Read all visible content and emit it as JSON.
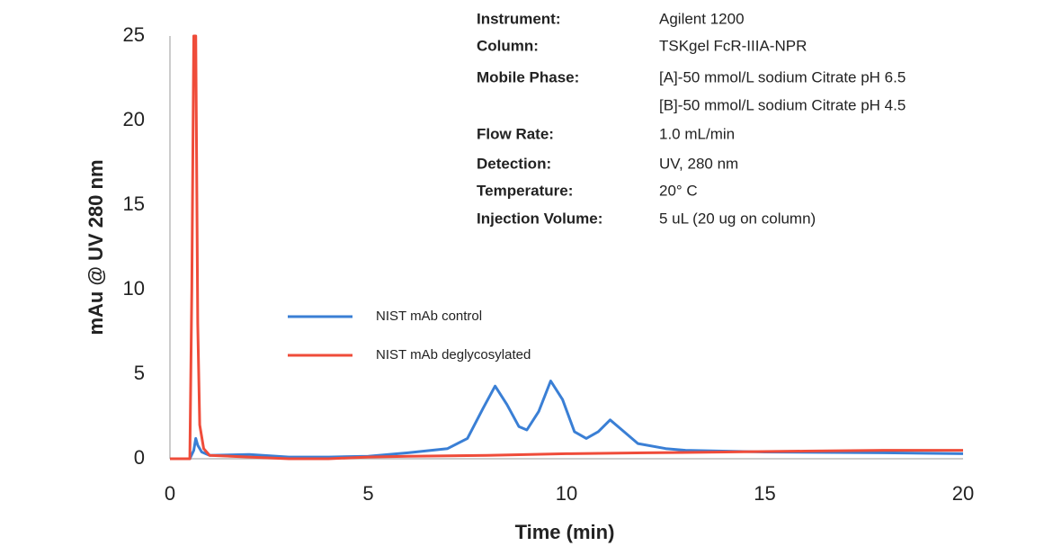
{
  "chart_data": {
    "type": "line",
    "x_label": "Time (min)",
    "y_label": "mAu @ UV 280 nm",
    "xlim": [
      0,
      20
    ],
    "xticks": [
      0,
      5,
      10,
      15,
      20
    ],
    "ylim": [
      0,
      25
    ],
    "yticks": [
      0,
      5,
      10,
      15,
      20,
      25
    ],
    "grid": false,
    "legend": "center-left",
    "series": [
      {
        "name": "NIST mAb  control",
        "color": "#3a7fd5",
        "x": [
          0,
          0.5,
          0.6,
          0.65,
          0.7,
          0.8,
          1,
          2,
          3,
          4,
          5,
          6,
          7,
          7.5,
          7.9,
          8.2,
          8.5,
          8.8,
          9.0,
          9.3,
          9.6,
          9.9,
          10.2,
          10.5,
          10.8,
          11.1,
          11.4,
          11.8,
          12.5,
          13,
          15,
          18,
          20
        ],
        "values": [
          0,
          0,
          0.5,
          1.2,
          0.8,
          0.4,
          0.2,
          0.25,
          0.1,
          0.1,
          0.15,
          0.35,
          0.6,
          1.2,
          3.0,
          4.3,
          3.2,
          1.9,
          1.7,
          2.8,
          4.6,
          3.5,
          1.6,
          1.2,
          1.6,
          2.3,
          1.7,
          0.9,
          0.6,
          0.5,
          0.4,
          0.35,
          0.3
        ]
      },
      {
        "name": "NIST mAb deglycosylated",
        "color": "#ef4c3a",
        "x": [
          0,
          0.5,
          0.55,
          0.6,
          0.65,
          0.7,
          0.75,
          0.85,
          1,
          2,
          3,
          4,
          5,
          6,
          8,
          10,
          12,
          14,
          16,
          18,
          20
        ],
        "values": [
          0,
          0,
          10,
          25,
          25,
          8,
          2,
          0.6,
          0.2,
          0.1,
          0,
          0,
          0.1,
          0.15,
          0.2,
          0.3,
          0.35,
          0.4,
          0.45,
          0.5,
          0.5
        ]
      }
    ],
    "annotations": [
      {
        "label": "Instrument:",
        "text": "Agilent 1200"
      },
      {
        "label": "Column:",
        "text": "TSKgel FcR-IIIA-NPR"
      },
      {
        "label": "Mobile Phase:",
        "text": "[A]-50 mmol/L sodium Citrate pH 6.5"
      },
      {
        "text": "[B]-50 mmol/L sodium Citrate pH 4.5"
      },
      {
        "label": "Flow Rate:",
        "text": "1.0 mL/min"
      },
      {
        "label": "Detection:",
        "text": "UV, 280 nm"
      },
      {
        "label": "Temperature:",
        "text": " 20° C"
      },
      {
        "label": "Injection Volume:",
        "text": "5 uL (20 ug on column)"
      }
    ]
  }
}
